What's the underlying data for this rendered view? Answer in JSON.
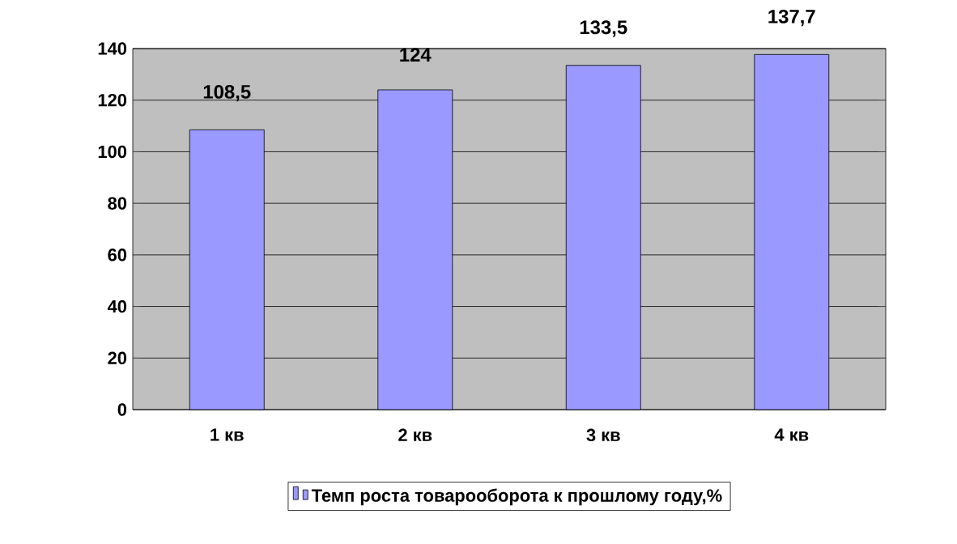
{
  "chart_data": {
    "type": "bar",
    "categories": [
      "1 кв",
      "2 кв",
      "3 кв",
      "4 кв"
    ],
    "series": [
      {
        "name": "Темп роста товарооборота к прошлому году,%",
        "color": "#9999ff",
        "values": [
          108.5,
          124,
          133.5,
          137.7
        ],
        "value_labels": [
          "108,5",
          "124",
          "133,5",
          "137,7"
        ]
      }
    ],
    "ylim": [
      0,
      140
    ],
    "yticks": [
      0,
      20,
      40,
      60,
      80,
      100,
      120,
      140
    ],
    "grid": "y",
    "legend": "bottom"
  }
}
